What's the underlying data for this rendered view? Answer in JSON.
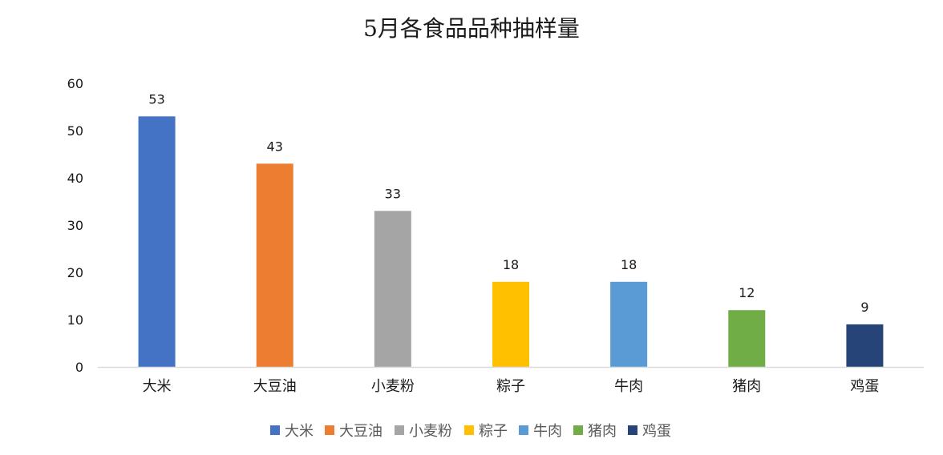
{
  "chart_data": {
    "type": "bar",
    "title": "5月各食品品种抽样量",
    "categories": [
      "大米",
      "大豆油",
      "小麦粉",
      "粽子",
      "牛肉",
      "猪肉",
      "鸡蛋"
    ],
    "values": [
      53,
      43,
      33,
      18,
      18,
      12,
      9
    ],
    "colors": [
      "#4472C4",
      "#ED7D31",
      "#A5A5A5",
      "#FFC000",
      "#5B9BD5",
      "#70AD47",
      "#264478"
    ],
    "yticks": [
      "0",
      "10",
      "20",
      "30",
      "40",
      "50",
      "60"
    ],
    "ylim": [
      0,
      60
    ],
    "data_labels": [
      "53",
      "43",
      "33",
      "18",
      "18",
      "12",
      "9"
    ],
    "legend": [
      "大米",
      "大豆油",
      "小麦粉",
      "粽子",
      "牛肉",
      "猪肉",
      "鸡蛋"
    ],
    "legend_position": "bottom",
    "grid": false
  }
}
